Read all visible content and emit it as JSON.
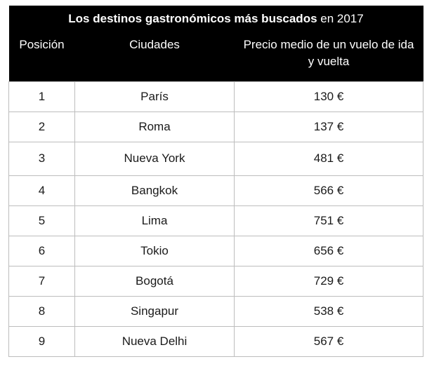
{
  "table": {
    "title_bold": "Los destinos gastronómicos más buscados",
    "title_rest": " en 2017",
    "headers": {
      "position": "Posición",
      "city": "Ciudades",
      "price": "Precio medio de un vuelo de ida y vuelta"
    },
    "rows": [
      {
        "position": "1",
        "city": "París",
        "price": "130 €"
      },
      {
        "position": "2",
        "city": "Roma",
        "price": "137 €"
      },
      {
        "position": "3",
        "city": "Nueva York",
        "price": "481 €"
      },
      {
        "position": "4",
        "city": "Bangkok",
        "price": "566 €"
      },
      {
        "position": "5",
        "city": "Lima",
        "price": "751 €"
      },
      {
        "position": "6",
        "city": "Tokio",
        "price": "656 €"
      },
      {
        "position": "7",
        "city": "Bogotá",
        "price": "729 €"
      },
      {
        "position": "8",
        "city": "Singapur",
        "price": "538 €"
      },
      {
        "position": "9",
        "city": "Nueva Delhi",
        "price": "567 €"
      }
    ]
  }
}
